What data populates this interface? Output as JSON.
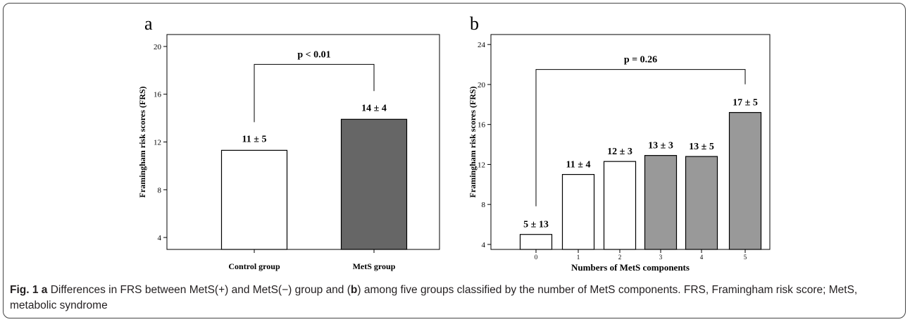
{
  "caption": {
    "fig_label": "Fig. 1",
    "part_a": "a",
    "text1": " Differences in FRS between MetS(+) and MetS(−) group and (",
    "part_b": "b",
    "text2": ") among five groups classified by the number of MetS components. FRS, Framingham risk score; MetS, metabolic syndrome"
  },
  "chart_data": [
    {
      "type": "bar",
      "panel": "a",
      "categories": [
        "Control group",
        "MetS group"
      ],
      "values": [
        11.3,
        13.9
      ],
      "value_labels": [
        "11 ± 5",
        "14 ± 4"
      ],
      "bar_colors": [
        "#ffffff",
        "#666666"
      ],
      "ylabel": "Framingham risk scores (FRS)",
      "xlabel": "",
      "ylim": [
        3,
        21
      ],
      "yticks": [
        4,
        8,
        12,
        16,
        20
      ],
      "grid": false,
      "significance": {
        "from": 0,
        "to": 1,
        "label": "p < 0.01",
        "y": 18.5
      }
    },
    {
      "type": "bar",
      "panel": "b",
      "categories": [
        "0",
        "1",
        "2",
        "3",
        "4",
        "5"
      ],
      "values": [
        5.0,
        11.0,
        12.3,
        12.9,
        12.8,
        17.2
      ],
      "value_labels": [
        "5 ± 13",
        "11 ± 4",
        "12 ± 3",
        "13 ± 3",
        "13 ± 5",
        "17 ± 5"
      ],
      "bar_colors": [
        "#ffffff",
        "#ffffff",
        "#ffffff",
        "#999999",
        "#999999",
        "#999999"
      ],
      "ylabel": "Framingham risk scores (FRS)",
      "xlabel": "Numbers of MetS components",
      "ylim": [
        3.5,
        25
      ],
      "yticks": [
        4,
        8,
        12,
        16,
        20,
        24
      ],
      "grid": false,
      "significance": {
        "from": 0,
        "to": 5,
        "label": "p = 0.26",
        "y": 21.5
      }
    }
  ]
}
